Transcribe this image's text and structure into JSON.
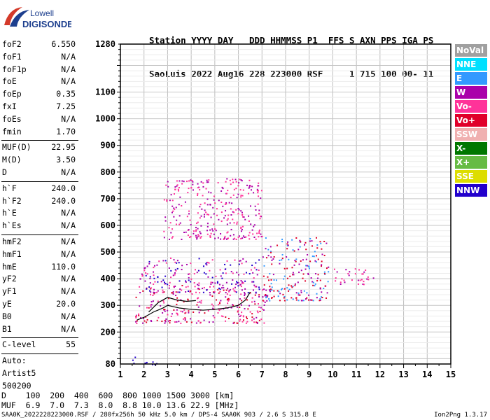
{
  "logo": {
    "line1": "Lowell",
    "line2": "DIGISONDE"
  },
  "header": {
    "line1": "Station YYYY DAY   DDD HHMMSS P1  FFS S AXN PPS IGA PS",
    "line2": "SaoLuis 2022 Aug16 228 223000 RSF     1 715 100 00- 11"
  },
  "params": [
    {
      "name": "foF2",
      "value": "6.550"
    },
    {
      "name": "foF1",
      "value": "N/A"
    },
    {
      "name": "foF1p",
      "value": "N/A"
    },
    {
      "name": "foE",
      "value": "N/A"
    },
    {
      "name": "foEp",
      "value": "0.35"
    },
    {
      "name": "fxI",
      "value": "7.25"
    },
    {
      "name": "foEs",
      "value": "N/A"
    },
    {
      "name": "fmin",
      "value": "1.70"
    },
    {
      "sep": true
    },
    {
      "name": "MUF(D)",
      "value": "22.95"
    },
    {
      "name": "M(D)",
      "value": "3.50"
    },
    {
      "name": "D",
      "value": "N/A"
    },
    {
      "sep": true
    },
    {
      "name": "h`F",
      "value": "240.0"
    },
    {
      "name": "h`F2",
      "value": "240.0"
    },
    {
      "name": "h`E",
      "value": "N/A"
    },
    {
      "name": "h`Es",
      "value": "N/A"
    },
    {
      "sep": true
    },
    {
      "name": "hmF2",
      "value": "N/A"
    },
    {
      "name": "hmF1",
      "value": "N/A"
    },
    {
      "name": "hmE",
      "value": "110.0"
    },
    {
      "name": "yF2",
      "value": "N/A"
    },
    {
      "name": "yF1",
      "value": "N/A"
    },
    {
      "name": "yE",
      "value": "20.0"
    },
    {
      "name": "B0",
      "value": "N/A"
    },
    {
      "name": "B1",
      "value": "N/A"
    },
    {
      "sep": true
    },
    {
      "name": "C-level",
      "value": "55"
    },
    {
      "sep": true
    },
    {
      "name": "Auto:",
      "value": ""
    },
    {
      "name": "Artist5",
      "value": ""
    },
    {
      "name": "500200",
      "value": ""
    }
  ],
  "legend": [
    {
      "label": "NoVal",
      "color": "#a0a0a0"
    },
    {
      "label": "NNE",
      "color": "#00e0ff"
    },
    {
      "label": "E",
      "color": "#3399ff"
    },
    {
      "label": "W",
      "color": "#aa00aa"
    },
    {
      "label": "Vo-",
      "color": "#ff3399"
    },
    {
      "label": "Vo+",
      "color": "#e0002a"
    },
    {
      "label": "SSW",
      "color": "#f0b0b0"
    },
    {
      "label": "X-",
      "color": "#007700"
    },
    {
      "label": "X+",
      "color": "#66bb44"
    },
    {
      "label": "SSE",
      "color": "#dddd00"
    },
    {
      "label": "NNW",
      "color": "#2200cc"
    }
  ],
  "chart_data": {
    "type": "scatter",
    "title": "",
    "xlabel": "",
    "ylabel": "",
    "xlim": [
      1,
      15
    ],
    "ylim": [
      80,
      1280
    ],
    "xticks": [
      1,
      2,
      3,
      4,
      5,
      6,
      7,
      8,
      9,
      10,
      11,
      12,
      13,
      14,
      15
    ],
    "yticks": [
      80,
      200,
      300,
      400,
      500,
      600,
      700,
      800,
      900,
      1000,
      1100,
      1280
    ],
    "grid": true,
    "description": "ionogram echo traces",
    "trace_curve": [
      [
        1.7,
        245
      ],
      [
        2.0,
        255
      ],
      [
        2.4,
        275
      ],
      [
        2.8,
        290
      ],
      [
        3.0,
        300
      ],
      [
        3.5,
        290
      ],
      [
        4.0,
        285
      ],
      [
        4.5,
        282
      ],
      [
        5.0,
        285
      ],
      [
        5.5,
        290
      ],
      [
        6.0,
        300
      ],
      [
        6.3,
        320
      ],
      [
        6.5,
        350
      ]
    ],
    "trace_curve_upper": [
      [
        2.2,
        275
      ],
      [
        2.6,
        310
      ],
      [
        3.0,
        330
      ],
      [
        3.4,
        320
      ],
      [
        3.8,
        315
      ],
      [
        4.2,
        318
      ]
    ],
    "echo_regions": [
      {
        "name": "F-layer main trace",
        "x": [
          1.6,
          7.2
        ],
        "y": [
          235,
          380
        ],
        "colors": [
          "#e0002a",
          "#ff3399",
          "#aa00aa"
        ]
      },
      {
        "name": "F-layer upper spread",
        "x": [
          1.8,
          7.0
        ],
        "y": [
          350,
          480
        ],
        "colors": [
          "#aa00aa",
          "#2200cc",
          "#ff3399"
        ]
      },
      {
        "name": "mid-frequency cluster",
        "x": [
          7.0,
          9.8
        ],
        "y": [
          320,
          560
        ],
        "colors": [
          "#e0002a",
          "#aa00aa",
          "#3399ff"
        ]
      },
      {
        "name": "high-frequency tail",
        "x": [
          10.0,
          11.7
        ],
        "y": [
          380,
          440
        ],
        "colors": [
          "#aa00aa",
          "#ff3399"
        ]
      },
      {
        "name": "multi-hop echoes",
        "x": [
          2.8,
          7.0
        ],
        "y": [
          550,
          780
        ],
        "colors": [
          "#aa00aa",
          "#ff3399"
        ]
      },
      {
        "name": "low-frequency echoes",
        "x": [
          1.5,
          2.6
        ],
        "y": [
          80,
          110
        ],
        "colors": [
          "#2200cc"
        ]
      }
    ]
  },
  "muf_table": {
    "d_label": "D",
    "d_values": "100  200  400  600  800 1000 1500 3000 [km]",
    "muf_label": "MUF",
    "muf_values": "6.9  7.0  7.3  8.0  8.8 10.0 13.6 22.9 [MHz]"
  },
  "footer": "SAA0K_2022228223000.RSF / 280fx256h 50 kHz 5.0 km / DPS-4 SAA0K 903 / 2.6 S 315.8 E",
  "version": "Ion2Png 1.3.17"
}
